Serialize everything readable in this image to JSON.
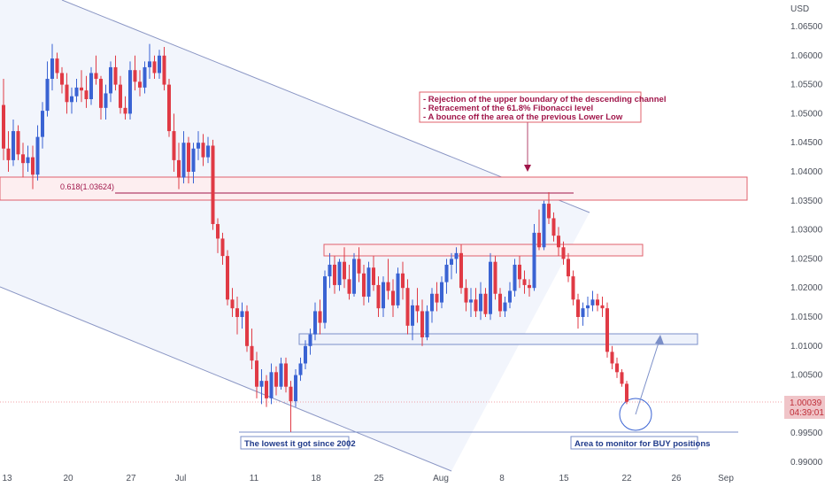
{
  "chart_data": {
    "type": "candlestick",
    "currency": "USD",
    "y_ticks": [
      "1.06500",
      "1.06000",
      "1.05500",
      "1.05000",
      "1.04500",
      "1.04000",
      "1.03500",
      "1.03000",
      "1.02500",
      "1.02000",
      "1.01500",
      "1.01000",
      "1.00500",
      "1.00000",
      "0.99500",
      "0.99000"
    ],
    "x_ticks": [
      "13",
      "20",
      "27",
      "Jul",
      "11",
      "18",
      "25",
      "Aug",
      "8",
      "15",
      "22",
      "26",
      "Sep"
    ],
    "ylim": [
      0.9885,
      1.0685
    ],
    "last_price": "1.00039",
    "countdown": "04:39:01",
    "fib_label": "0.618(1.03624)",
    "fib_value": 1.03624,
    "note_lines": [
      "- Rejection of the upper boundary of the descending channel",
      "- Retracement of the 61.8% Fibonacci level",
      "- A bounce off the area of the previous Lower Low"
    ],
    "low_label": "The lowest it got since 2002",
    "buy_label": "Area to monitor for BUY positions",
    "colors": {
      "up": "#3a63d3",
      "down": "#e03a45",
      "channel": "#8a96c4",
      "zone_red": "#e0606b",
      "zone_blue": "#7b8fc8",
      "label_blue": "#1f3a8a",
      "note_text": "#a0164a",
      "fib_line": "#a0164a",
      "price_bg": "#f0c4c8"
    },
    "candles": [
      [
        1.0515,
        1.056,
        1.042,
        1.044
      ],
      [
        1.044,
        1.047,
        1.04,
        1.042
      ],
      [
        1.042,
        1.049,
        1.041,
        1.047
      ],
      [
        1.047,
        1.048,
        1.042,
        1.043
      ],
      [
        1.043,
        1.045,
        1.039,
        1.0415
      ],
      [
        1.0415,
        1.0445,
        1.04,
        1.0425
      ],
      [
        1.0425,
        1.0445,
        1.037,
        1.0395
      ],
      [
        1.0395,
        1.048,
        1.0385,
        1.046
      ],
      [
        1.046,
        1.052,
        1.044,
        1.0505
      ],
      [
        1.0505,
        1.059,
        1.0495,
        1.056
      ],
      [
        1.056,
        1.062,
        1.054,
        1.0595
      ],
      [
        1.0595,
        1.0605,
        1.056,
        1.057
      ],
      [
        1.057,
        1.058,
        1.0535,
        1.055
      ],
      [
        1.055,
        1.057,
        1.05,
        1.052
      ],
      [
        1.052,
        1.0545,
        1.05,
        1.053
      ],
      [
        1.053,
        1.056,
        1.052,
        1.0545
      ],
      [
        1.0545,
        1.0575,
        1.052,
        1.054
      ],
      [
        1.054,
        1.0565,
        1.051,
        1.0525
      ],
      [
        1.0525,
        1.058,
        1.0515,
        1.057
      ],
      [
        1.057,
        1.06,
        1.055,
        1.056
      ],
      [
        1.056,
        1.0565,
        1.049,
        1.051
      ],
      [
        1.051,
        1.055,
        1.049,
        1.0535
      ],
      [
        1.0535,
        1.059,
        1.052,
        1.058
      ],
      [
        1.058,
        1.06,
        1.054,
        1.055
      ],
      [
        1.055,
        1.0565,
        1.05,
        1.051
      ],
      [
        1.051,
        1.053,
        1.049,
        1.05
      ],
      [
        1.05,
        1.059,
        1.049,
        1.0575
      ],
      [
        1.0575,
        1.06,
        1.054,
        1.0555
      ],
      [
        1.0555,
        1.0575,
        1.053,
        1.0545
      ],
      [
        1.0545,
        1.059,
        1.0535,
        1.058
      ],
      [
        1.058,
        1.062,
        1.056,
        1.059
      ],
      [
        1.059,
        1.06,
        1.056,
        1.057
      ],
      [
        1.057,
        1.061,
        1.056,
        1.06
      ],
      [
        1.06,
        1.0615,
        1.054,
        1.055
      ],
      [
        1.055,
        1.056,
        1.046,
        1.047
      ],
      [
        1.047,
        1.05,
        1.04,
        1.042
      ],
      [
        1.042,
        1.045,
        1.037,
        1.039
      ],
      [
        1.039,
        1.047,
        1.038,
        1.045
      ],
      [
        1.045,
        1.046,
        1.038,
        1.04
      ],
      [
        1.04,
        1.045,
        1.038,
        1.044
      ],
      [
        1.044,
        1.047,
        1.042,
        1.045
      ],
      [
        1.045,
        1.0465,
        1.041,
        1.0425
      ],
      [
        1.0425,
        1.046,
        1.0415,
        1.0445
      ],
      [
        1.0445,
        1.0455,
        1.03,
        1.031
      ],
      [
        1.031,
        1.032,
        1.026,
        1.0285
      ],
      [
        1.0285,
        1.0295,
        1.024,
        1.0255
      ],
      [
        1.0255,
        1.0265,
        1.017,
        1.018
      ],
      [
        1.018,
        1.02,
        1.015,
        1.0165
      ],
      [
        1.0165,
        1.0185,
        1.012,
        1.015
      ],
      [
        1.015,
        1.0175,
        1.013,
        1.016
      ],
      [
        1.016,
        1.017,
        1.009,
        1.01
      ],
      [
        1.01,
        1.013,
        1.006,
        1.0075
      ],
      [
        1.0075,
        1.009,
        1.001,
        1.003
      ],
      [
        1.003,
        1.006,
        1.0,
        1.004
      ],
      [
        1.004,
        1.005,
        0.9995,
        1.001
      ],
      [
        1.001,
        1.007,
        1.0,
        1.0055
      ],
      [
        1.0055,
        1.0065,
        1.0015,
        1.003
      ],
      [
        1.003,
        1.008,
        1.0025,
        1.007
      ],
      [
        1.007,
        1.008,
        1.002,
        1.003
      ],
      [
        1.003,
        1.004,
        0.9952,
        1.0005
      ],
      [
        1.0005,
        1.006,
        0.9995,
        1.005
      ],
      [
        1.005,
        1.008,
        1.004,
        1.007
      ],
      [
        1.007,
        1.011,
        1.006,
        1.01
      ],
      [
        1.01,
        1.013,
        1.0085,
        1.012
      ],
      [
        1.012,
        1.0175,
        1.011,
        1.016
      ],
      [
        1.016,
        1.018,
        1.012,
        1.014
      ],
      [
        1.014,
        1.023,
        1.013,
        1.022
      ],
      [
        1.022,
        1.026,
        1.02,
        1.024
      ],
      [
        1.024,
        1.0255,
        1.019,
        1.0205
      ],
      [
        1.0205,
        1.025,
        1.0195,
        1.0245
      ],
      [
        1.0245,
        1.027,
        1.02,
        1.0215
      ],
      [
        1.0215,
        1.024,
        1.018,
        1.019
      ],
      [
        1.019,
        1.026,
        1.0185,
        1.025
      ],
      [
        1.025,
        1.027,
        1.021,
        1.0225
      ],
      [
        1.0225,
        1.024,
        1.017,
        1.0185
      ],
      [
        1.0185,
        1.0245,
        1.0175,
        1.0235
      ],
      [
        1.0235,
        1.0255,
        1.0195,
        1.0205
      ],
      [
        1.0205,
        1.022,
        1.015,
        1.0165
      ],
      [
        1.0165,
        1.022,
        1.015,
        1.021
      ],
      [
        1.021,
        1.025,
        1.018,
        1.0195
      ],
      [
        1.0195,
        1.0215,
        1.015,
        1.017
      ],
      [
        1.017,
        1.0235,
        1.0165,
        1.0225
      ],
      [
        1.0225,
        1.0245,
        1.018,
        1.02
      ],
      [
        1.02,
        1.0215,
        1.012,
        1.0135
      ],
      [
        1.0135,
        1.018,
        1.011,
        1.017
      ],
      [
        1.017,
        1.02,
        1.014,
        1.016
      ],
      [
        1.016,
        1.018,
        1.01,
        1.0115
      ],
      [
        1.0115,
        1.017,
        1.011,
        1.016
      ],
      [
        1.016,
        1.02,
        1.014,
        1.019
      ],
      [
        1.019,
        1.021,
        1.016,
        1.0175
      ],
      [
        1.0175,
        1.022,
        1.0165,
        1.021
      ],
      [
        1.021,
        1.025,
        1.019,
        1.024
      ],
      [
        1.024,
        1.026,
        1.0215,
        1.025
      ],
      [
        1.025,
        1.027,
        1.0225,
        1.026
      ],
      [
        1.026,
        1.0275,
        1.019,
        1.02
      ],
      [
        1.02,
        1.0215,
        1.016,
        1.0175
      ],
      [
        1.0175,
        1.02,
        1.015,
        1.018
      ],
      [
        1.018,
        1.02,
        1.015,
        1.016
      ],
      [
        1.016,
        1.021,
        1.0145,
        1.019
      ],
      [
        1.019,
        1.02,
        1.015,
        1.0155
      ],
      [
        1.0155,
        1.026,
        1.0145,
        1.0245
      ],
      [
        1.0245,
        1.0255,
        1.018,
        1.019
      ],
      [
        1.019,
        1.02,
        1.015,
        1.016
      ],
      [
        1.016,
        1.0185,
        1.015,
        1.0175
      ],
      [
        1.0175,
        1.021,
        1.0165,
        1.0195
      ],
      [
        1.0195,
        1.025,
        1.0185,
        1.024
      ],
      [
        1.024,
        1.0255,
        1.02,
        1.0215
      ],
      [
        1.0215,
        1.023,
        1.019,
        1.0205
      ],
      [
        1.0205,
        1.0215,
        1.0185,
        1.02
      ],
      [
        1.02,
        1.031,
        1.0195,
        1.0295
      ],
      [
        1.0295,
        1.0335,
        1.0265,
        1.027
      ],
      [
        1.027,
        1.035,
        1.0265,
        1.0345
      ],
      [
        1.0345,
        1.0365,
        1.031,
        1.032
      ],
      [
        1.032,
        1.033,
        1.028,
        1.029
      ],
      [
        1.029,
        1.0305,
        1.0255,
        1.027
      ],
      [
        1.027,
        1.028,
        1.024,
        1.025
      ],
      [
        1.025,
        1.026,
        1.021,
        1.022
      ],
      [
        1.022,
        1.023,
        1.017,
        1.018
      ],
      [
        1.018,
        1.019,
        1.013,
        1.015
      ],
      [
        1.015,
        1.0175,
        1.0135,
        1.0165
      ],
      [
        1.0165,
        1.0185,
        1.015,
        1.017
      ],
      [
        1.017,
        1.0195,
        1.016,
        1.018
      ],
      [
        1.018,
        1.019,
        1.016,
        1.017
      ],
      [
        1.017,
        1.0185,
        1.015,
        1.0165
      ],
      [
        1.0165,
        1.0175,
        1.008,
        1.009
      ],
      [
        1.009,
        1.01,
        1.006,
        1.007
      ],
      [
        1.007,
        1.008,
        1.0045,
        1.0055
      ],
      [
        1.0055,
        1.006,
        1.003,
        1.0035
      ],
      [
        1.0035,
        1.004,
        1.0,
        1.0004
      ]
    ]
  }
}
